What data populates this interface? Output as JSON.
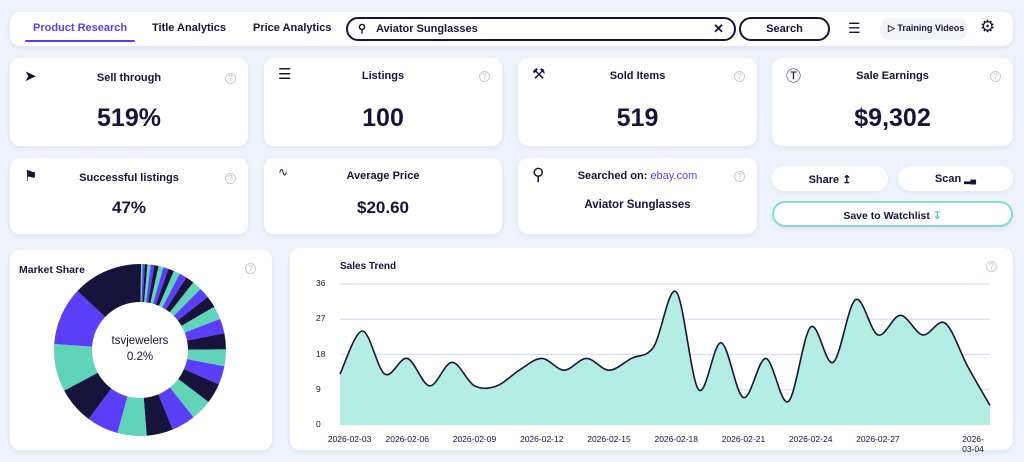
{
  "nav": {
    "tabs": [
      {
        "label": "Product Research",
        "active": true
      },
      {
        "label": "Title Analytics"
      },
      {
        "label": "Price Analytics"
      }
    ],
    "search_value": "Aviator Sunglasses",
    "search_button": "Search",
    "training_videos": "Training Videos",
    "icons": [
      "search-icon",
      "clear-icon",
      "filter-sliders-icon",
      "play-icon",
      "gear-icon"
    ]
  },
  "stats": {
    "sell_through": {
      "label": "Sell through",
      "value": "519%"
    },
    "listings": {
      "label": "Listings",
      "value": "100"
    },
    "sold_items": {
      "label": "Sold Items",
      "value": "519"
    },
    "sale_earnings": {
      "label": "Sale Earnings",
      "value": "$9,302"
    },
    "successful_listings": {
      "label": "Successful listings",
      "value": "47%"
    },
    "average_price": {
      "label": "Average Price",
      "value": "$20.60"
    },
    "searched_on": {
      "label": "Searched on:",
      "site": "ebay.com",
      "query": "Aviator Sunglasses"
    }
  },
  "actions": {
    "share": "Share",
    "scan": "Scan",
    "save_watchlist": "Save to Watchlist"
  },
  "colors": {
    "purple": "#5b3ff8",
    "teal": "#5fd4b8",
    "navy": "#16143a",
    "accent_fill": "#b4ede1"
  },
  "chart_data": [
    {
      "type": "pie",
      "title": "Market Share",
      "center_label": "tsvjewelers",
      "center_value": "0.2%",
      "values": [
        0.2,
        0.3,
        0.4,
        0.5,
        0.6,
        0.7,
        0.8,
        0.9,
        1,
        1.1,
        1.2,
        1.4,
        1.6,
        1.8,
        2,
        2.2,
        2.5,
        2.8,
        3,
        3.2,
        3.5,
        3.8,
        4,
        4.5,
        5,
        5.5,
        6,
        7,
        9,
        11,
        13
      ]
    },
    {
      "type": "area",
      "title": "Sales Trend",
      "ylim": [
        0,
        36
      ],
      "yticks": [
        "0",
        "9",
        "18",
        "27",
        "36"
      ],
      "grid": true,
      "xticks": [
        "2026-02-03",
        "2026-02-06",
        "2026-02-09",
        "2026-02-12",
        "2026-02-15",
        "2026-02-18",
        "2026-02-21",
        "2026-02-24",
        "2026-02-27",
        "2026-03-04"
      ],
      "x_start": "2026-02-03",
      "x_end": "2026-03-04",
      "values": [
        13,
        24,
        13,
        17,
        10,
        16,
        10,
        10,
        14,
        17,
        14,
        17,
        14,
        17,
        20,
        34,
        9,
        21,
        7,
        17,
        6,
        25,
        16,
        32,
        23,
        28,
        23,
        26,
        15,
        5
      ]
    }
  ]
}
